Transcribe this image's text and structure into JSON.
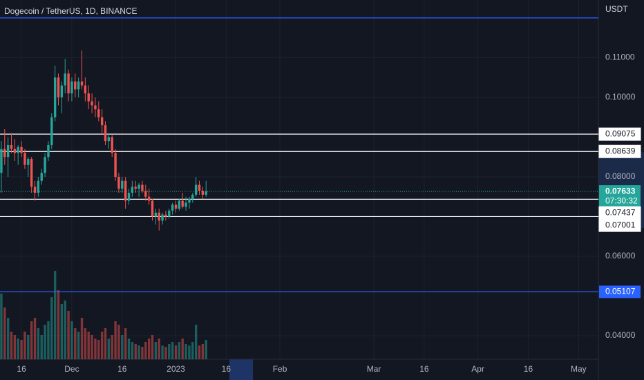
{
  "chart_data": {
    "type": "candlestick",
    "title": "Dogecoin / TetherUS, 1D, BINANCE",
    "currency": "USDT",
    "countdown": "07:30:32",
    "last_price": 0.07633,
    "up_color": "#26a69a",
    "down_color": "#ef5350",
    "x": [
      9,
      10,
      11,
      12,
      13,
      14,
      15,
      16,
      17,
      18,
      19,
      20,
      21,
      22,
      23,
      24,
      25,
      26,
      27,
      28,
      29,
      30,
      31,
      32,
      33,
      34,
      35,
      36,
      37,
      38,
      39,
      40,
      41,
      42,
      43,
      44,
      45,
      46,
      47,
      48,
      49,
      50,
      51,
      52,
      53,
      54,
      55,
      56,
      57,
      58,
      59,
      60,
      61,
      62,
      63,
      64,
      65,
      66,
      67,
      68,
      69,
      70
    ],
    "open": [
      0.081,
      0.087,
      0.085,
      0.088,
      0.087,
      0.086,
      0.0875,
      0.086,
      0.083,
      0.0845,
      0.0775,
      0.076,
      0.079,
      0.081,
      0.085,
      0.088,
      0.095,
      0.105,
      0.1,
      0.103,
      0.106,
      0.101,
      0.104,
      0.102,
      0.104,
      0.103,
      0.101,
      0.099,
      0.098,
      0.097,
      0.095,
      0.093,
      0.089,
      0.09,
      0.086,
      0.08,
      0.077,
      0.079,
      0.074,
      0.076,
      0.0775,
      0.077,
      0.078,
      0.0765,
      0.075,
      0.074,
      0.07,
      0.071,
      0.069,
      0.0705,
      0.07,
      0.0715,
      0.073,
      0.072,
      0.074,
      0.0725,
      0.0735,
      0.0745,
      0.0755,
      0.078,
      0.0765,
      0.0755
    ],
    "high": [
      0.089,
      0.092,
      0.09,
      0.091,
      0.0895,
      0.088,
      0.089,
      0.087,
      0.085,
      0.085,
      0.079,
      0.08,
      0.082,
      0.086,
      0.089,
      0.096,
      0.108,
      0.106,
      0.104,
      0.1097,
      0.107,
      0.105,
      0.106,
      0.105,
      0.1118,
      0.105,
      0.103,
      0.101,
      0.1,
      0.099,
      0.097,
      0.094,
      0.091,
      0.0905,
      0.087,
      0.081,
      0.08,
      0.08,
      0.077,
      0.079,
      0.079,
      0.0785,
      0.079,
      0.078,
      0.077,
      0.0745,
      0.072,
      0.072,
      0.071,
      0.0715,
      0.072,
      0.0735,
      0.074,
      0.0745,
      0.076,
      0.075,
      0.075,
      0.076,
      0.08,
      0.079,
      0.0775,
      0.079
    ],
    "low": [
      0.076,
      0.083,
      0.08,
      0.086,
      0.084,
      0.083,
      0.085,
      0.082,
      0.08,
      0.076,
      0.074,
      0.075,
      0.078,
      0.08,
      0.084,
      0.087,
      0.094,
      0.098,
      0.096,
      0.101,
      0.099,
      0.099,
      0.1,
      0.1,
      0.102,
      0.099,
      0.097,
      0.096,
      0.095,
      0.094,
      0.091,
      0.088,
      0.087,
      0.085,
      0.079,
      0.076,
      0.076,
      0.072,
      0.073,
      0.075,
      0.076,
      0.075,
      0.076,
      0.074,
      0.073,
      0.069,
      0.068,
      0.0665,
      0.068,
      0.069,
      0.0695,
      0.0705,
      0.071,
      0.0715,
      0.072,
      0.0715,
      0.072,
      0.0735,
      0.075,
      0.0755,
      0.0745,
      0.075
    ],
    "close": [
      0.087,
      0.085,
      0.088,
      0.087,
      0.086,
      0.0875,
      0.086,
      0.083,
      0.0845,
      0.0775,
      0.076,
      0.079,
      0.081,
      0.085,
      0.088,
      0.095,
      0.105,
      0.1,
      0.103,
      0.106,
      0.101,
      0.104,
      0.102,
      0.104,
      0.103,
      0.101,
      0.099,
      0.098,
      0.097,
      0.095,
      0.093,
      0.089,
      0.09,
      0.086,
      0.08,
      0.077,
      0.079,
      0.074,
      0.076,
      0.0775,
      0.077,
      0.078,
      0.0765,
      0.075,
      0.074,
      0.07,
      0.071,
      0.069,
      0.0705,
      0.07,
      0.0715,
      0.073,
      0.072,
      0.074,
      0.0725,
      0.0735,
      0.0745,
      0.0755,
      0.078,
      0.0765,
      0.0755,
      0.07633
    ],
    "volume": [
      95,
      75,
      60,
      40,
      35,
      30,
      28,
      40,
      35,
      55,
      60,
      45,
      35,
      50,
      55,
      90,
      128,
      100,
      80,
      85,
      70,
      55,
      45,
      40,
      60,
      45,
      40,
      35,
      30,
      28,
      40,
      45,
      30,
      35,
      55,
      50,
      35,
      45,
      30,
      25,
      22,
      20,
      18,
      25,
      30,
      35,
      25,
      30,
      20,
      18,
      22,
      25,
      20,
      25,
      30,
      22,
      20,
      25,
      50,
      20,
      22,
      28
    ],
    "xlim": [
      8.6,
      186.9
    ],
    "xticks": [
      {
        "value": 15,
        "label": "16"
      },
      {
        "value": 30,
        "label": "Dec"
      },
      {
        "value": 45,
        "label": "16"
      },
      {
        "value": 61,
        "label": "2023"
      },
      {
        "value": 76,
        "label": "16"
      },
      {
        "value": 92,
        "label": "Feb"
      },
      {
        "value": 120,
        "label": "Mar"
      },
      {
        "value": 135,
        "label": "16"
      },
      {
        "value": 151,
        "label": "Apr"
      },
      {
        "value": 166,
        "label": "16"
      },
      {
        "value": 181,
        "label": "May"
      }
    ],
    "ylim": [
      0.0341,
      0.1245
    ],
    "yticks": [
      {
        "value": 0.04,
        "label": "0.04000"
      },
      {
        "value": 0.06,
        "label": "0.06000"
      },
      {
        "value": 0.08,
        "label": "0.08000"
      },
      {
        "value": 0.1,
        "label": "0.10000"
      },
      {
        "value": 0.11,
        "label": "0.11000"
      }
    ],
    "grid": true,
    "lines": [
      {
        "value": 0.12,
        "color": "#2962ff"
      },
      {
        "value": 0.09075,
        "color": "#ffffff"
      },
      {
        "value": 0.08639,
        "color": "#ffffff"
      },
      {
        "value": 0.07437,
        "color": "#ffffff"
      },
      {
        "value": 0.07001,
        "color": "#ffffff"
      },
      {
        "value": 0.05107,
        "color": "#2962ff"
      }
    ]
  }
}
